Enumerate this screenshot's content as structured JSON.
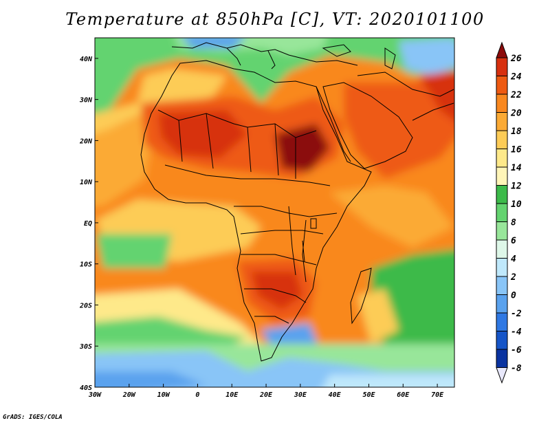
{
  "title": "Temperature at 850hPa [C], VT: 2020101100",
  "credit": "GrADS: IGES/COLA",
  "map": {
    "lon_range": [
      -30,
      75
    ],
    "lat_range": [
      -40,
      45
    ],
    "lat_ticks": [
      "40N",
      "30N",
      "20N",
      "10N",
      "EQ",
      "10S",
      "20S",
      "30S",
      "40S"
    ],
    "lon_ticks": [
      "30W",
      "20W",
      "10W",
      "0",
      "10E",
      "20E",
      "30E",
      "40E",
      "50E",
      "60E",
      "70E"
    ]
  },
  "colorbar": {
    "levels": [
      "26",
      "24",
      "22",
      "20",
      "18",
      "16",
      "14",
      "12",
      "10",
      "8",
      "6",
      "4",
      "2",
      "0",
      "-2",
      "-4",
      "-6",
      "-8"
    ],
    "colors": [
      "#8b0a0a",
      "#d7300f",
      "#ee5a12",
      "#f9881f",
      "#fbaa35",
      "#fdcc57",
      "#fee98a",
      "#fff5b8",
      "#3cba4a",
      "#63d36f",
      "#98e69a",
      "#def7e8",
      "#bfe8fb",
      "#89c5f7",
      "#5aa2ee",
      "#2f78e3",
      "#1655c8",
      "#0a33a0",
      "#0a1a6a"
    ]
  }
}
